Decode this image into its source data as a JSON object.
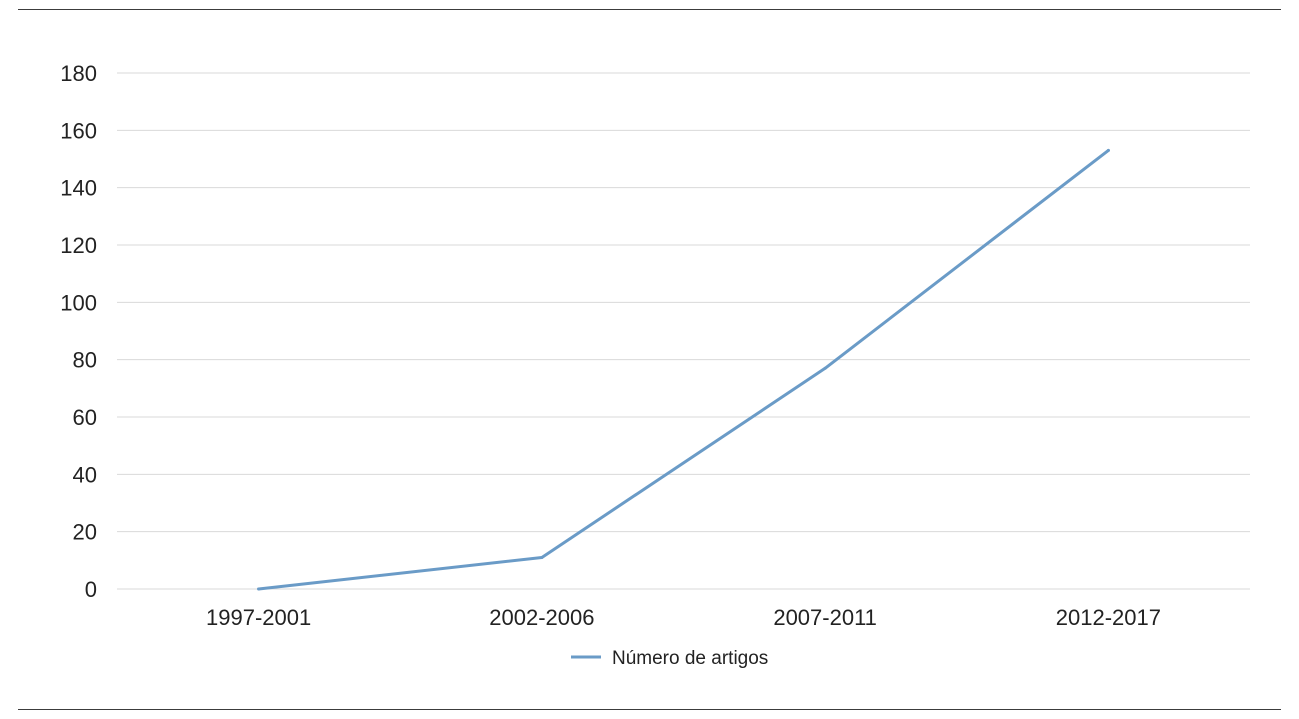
{
  "chart_data": {
    "type": "line",
    "categories": [
      "1997-2001",
      "2002-2006",
      "2007-2011",
      "2012-2017"
    ],
    "series": [
      {
        "name": "Número de artigos",
        "values": [
          0,
          11,
          77,
          153
        ],
        "color": "#6a9bc7"
      }
    ],
    "ylim": [
      0,
      180
    ],
    "yticks": [
      0,
      20,
      40,
      60,
      80,
      100,
      120,
      140,
      160,
      180
    ],
    "grid": true,
    "gridColor": "#d9d9d9",
    "legend": "bottom-center"
  }
}
